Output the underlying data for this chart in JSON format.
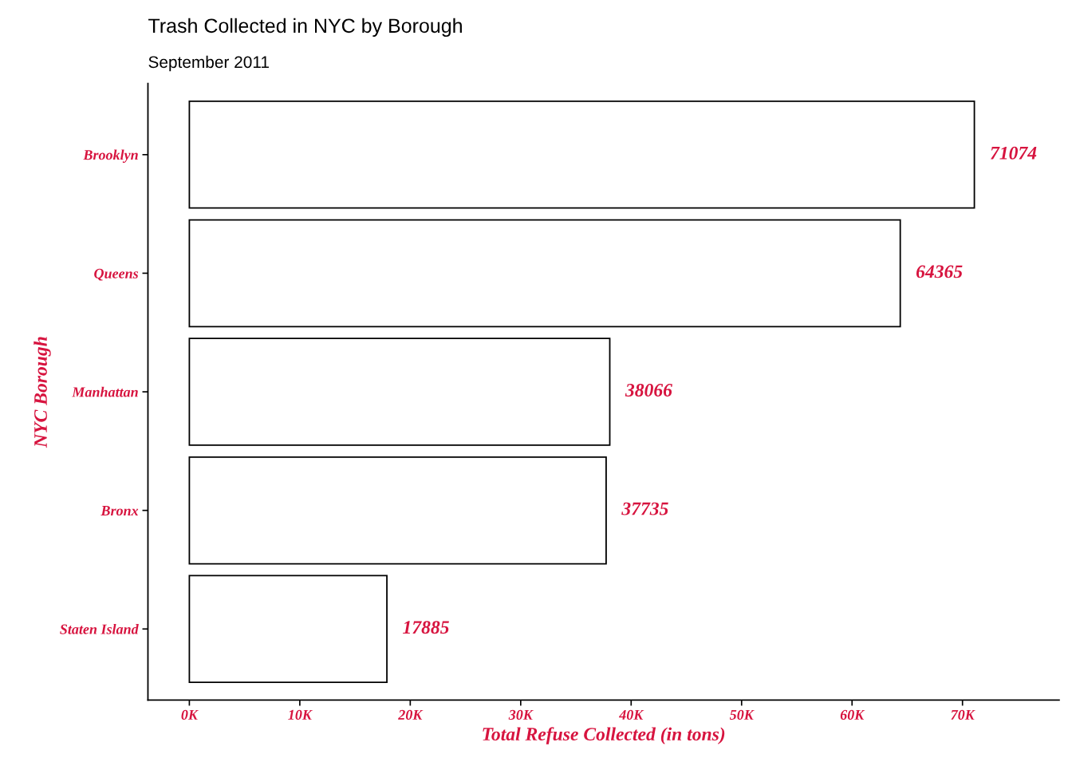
{
  "chart_data": {
    "type": "bar",
    "orientation": "horizontal",
    "title": "Trash Collected in NYC by Borough",
    "subtitle": "September 2011",
    "xlabel": "Total Refuse Collected (in tons)",
    "ylabel": "NYC Borough",
    "categories": [
      "Brooklyn",
      "Queens",
      "Manhattan",
      "Bronx",
      "Staten Island"
    ],
    "values": [
      71074,
      64365,
      38066,
      37735,
      17885
    ],
    "color": "#ffffff",
    "xlim": [
      -3750,
      78750
    ],
    "xticks": [
      {
        "value": 0,
        "label": "0K"
      },
      {
        "value": 10000,
        "label": "10K"
      },
      {
        "value": 20000,
        "label": "20K"
      },
      {
        "value": 30000,
        "label": "30K"
      },
      {
        "value": 40000,
        "label": "40K"
      },
      {
        "value": 50000,
        "label": "50K"
      },
      {
        "value": 60000,
        "label": "60K"
      },
      {
        "value": 70000,
        "label": "70K"
      }
    ],
    "data_labels": true
  }
}
